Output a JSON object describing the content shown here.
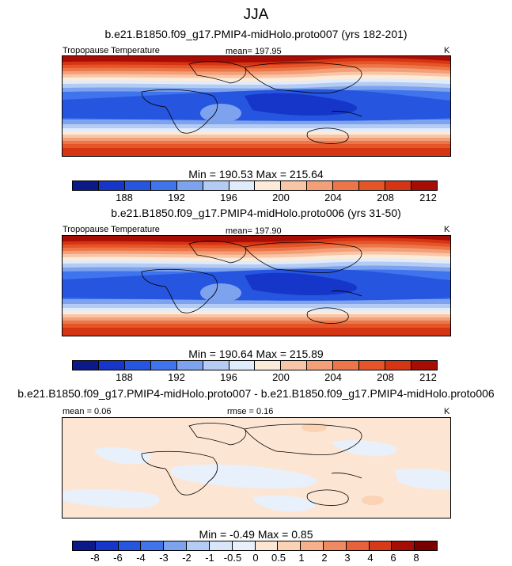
{
  "title": "JJA",
  "units": "K",
  "panels": [
    {
      "subtitle": "b.e21.B1850.f09_g17.PMIP4-midHolo.proto007 (yrs 182-201)",
      "variable": "Tropopause Temperature",
      "mean_text": "mean= 197.95",
      "minmax_text": "Min = 190.53 Max = 215.64",
      "colorbar_ticks": [
        "188",
        "192",
        "196",
        "200",
        "204",
        "208",
        "212"
      ]
    },
    {
      "subtitle": "b.e21.B1850.f09_g17.PMIP4-midHolo.proto006 (yrs 31-50)",
      "variable": "Tropopause Temperature",
      "mean_text": "mean= 197.90",
      "minmax_text": "Min = 190.64 Max = 215.89",
      "colorbar_ticks": [
        "188",
        "192",
        "196",
        "200",
        "204",
        "208",
        "212"
      ]
    },
    {
      "subtitle": "b.e21.B1850.f09_g17.PMIP4-midHolo.proto007 - b.e21.B1850.f09_g17.PMIP4-midHolo.proto006",
      "mean_text": "mean =   0.06",
      "rmse_text": "rmse =   0.16",
      "minmax_text": "Min =  -0.49 Max =   0.85",
      "colorbar_ticks": [
        "-8",
        "-6",
        "-4",
        "-3",
        "-2",
        "-1",
        "-0.5",
        "0",
        "0.5",
        "1",
        "2",
        "3",
        "4",
        "6",
        "8"
      ]
    }
  ],
  "colors": {
    "abs_scale": [
      "#0a1a88",
      "#1536c8",
      "#2655e0",
      "#3f74ec",
      "#7da2ee",
      "#b4cbf3",
      "#e0ebfb",
      "#fdebd9",
      "#f8c6a7",
      "#f3a079",
      "#ec7649",
      "#e55528",
      "#d63514",
      "#a80d05"
    ],
    "diff_scale": [
      "#0a1a88",
      "#1536c8",
      "#2655e0",
      "#3f74ec",
      "#7da2ee",
      "#b4cbf3",
      "#d9e6fa",
      "#e8f0fc",
      "#fde5d3",
      "#fbd2b4",
      "#f7b08c",
      "#f08a60",
      "#e8613a",
      "#d63a18",
      "#a80d05",
      "#7a0000"
    ]
  }
}
